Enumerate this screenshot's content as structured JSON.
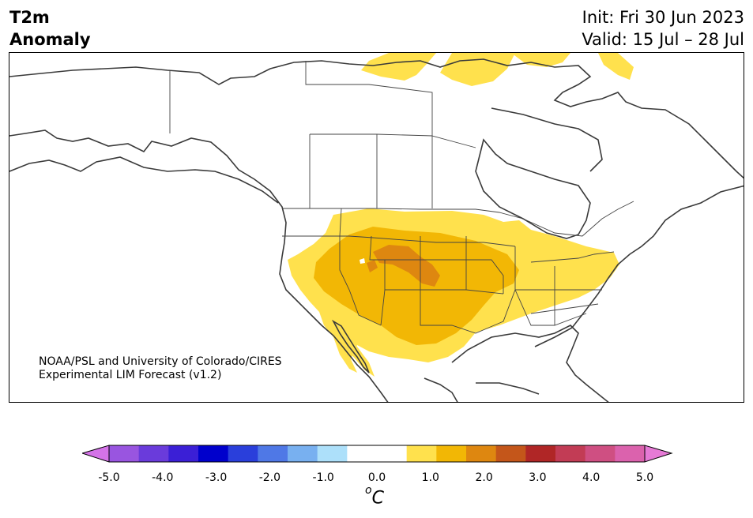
{
  "title": {
    "left_line1": "T2m",
    "left_line2": "Anomaly",
    "init": "Init: Fri 30 Jun 2023",
    "valid": "Valid: 15 Jul – 28 Jul"
  },
  "credit": {
    "line1": "NOAA/PSL and University of Colorado/CIRES",
    "line2": "Experimental LIM Forecast (v1.2)"
  },
  "colorbar": {
    "colors": [
      "#d473e8",
      "#9955e0",
      "#6a3bdb",
      "#3b1fd6",
      "#0000cc",
      "#2a3fdb",
      "#4f78e6",
      "#78b0f0",
      "#ade0fa",
      "#ffffff",
      "#ffffff",
      "#ffe14d",
      "#f2b705",
      "#de8710",
      "#c4561a",
      "#b02626",
      "#c23c55",
      "#cf4f82",
      "#db62ad",
      "#e67ad6"
    ],
    "tick_labels": [
      "-5.0",
      "-4.0",
      "-3.0",
      "-2.0",
      "-1.0",
      "0.0",
      "1.0",
      "2.0",
      "3.0",
      "4.0",
      "5.0"
    ],
    "unit_base": "C",
    "unit_sup": "o"
  },
  "map": {
    "anomaly_levels_colors": {
      "+0.5 to +1.0": "#ffe14d",
      "+1.0 to +1.5": "#f2b705",
      "+1.5 to +2.0": "#de8710"
    },
    "coastline_color": "#3a3a3a",
    "border_color": "#444444"
  }
}
